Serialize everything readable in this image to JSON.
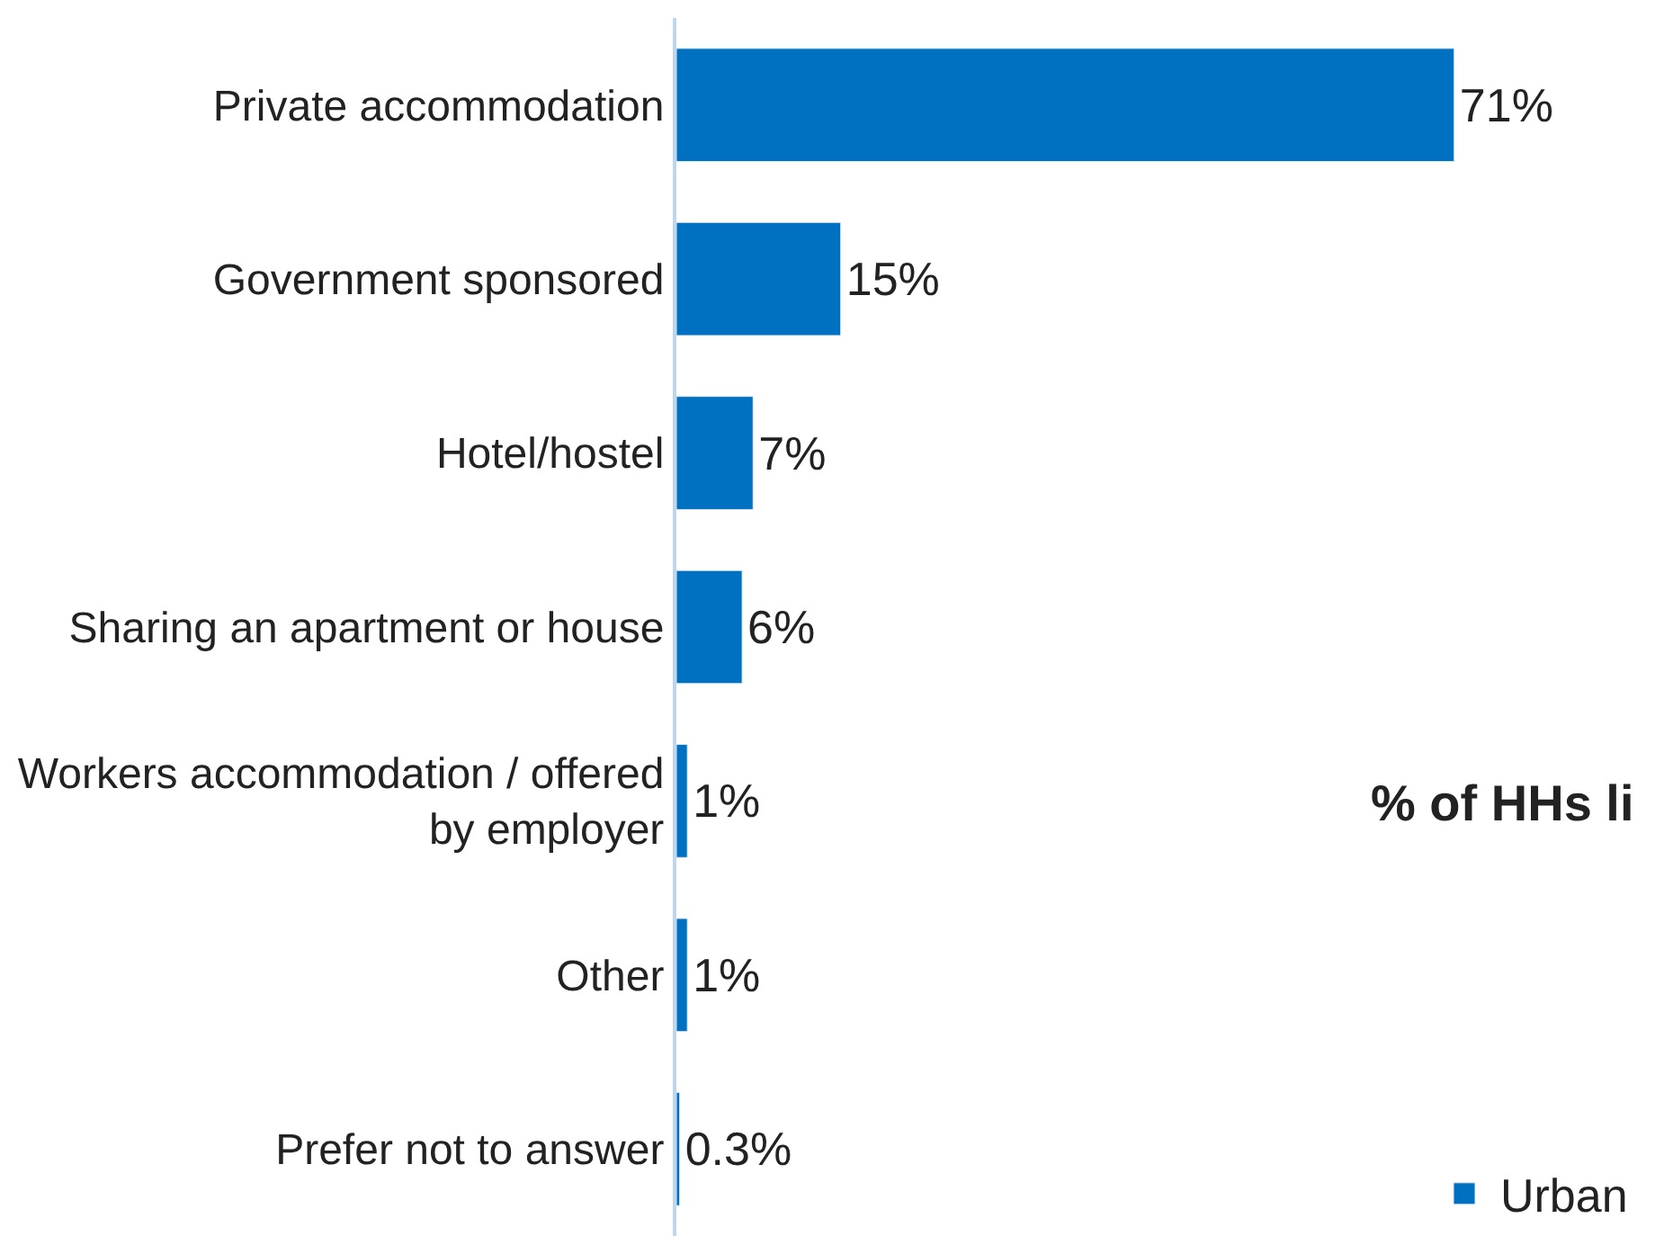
{
  "chart_data": {
    "type": "bar",
    "orientation": "horizontal",
    "categories": [
      "Private accommodation",
      "Government sponsored",
      "Hotel/hostel",
      "Sharing an apartment or house",
      "Workers accommodation / offered by employer",
      "Other",
      "Prefer not to answer"
    ],
    "series": [
      {
        "name": "Urban",
        "color": "#0070c0",
        "values": [
          71,
          15,
          7,
          6,
          1,
          1,
          0.3
        ],
        "value_labels": [
          "71%",
          "15%",
          "7%",
          "6%",
          "1%",
          "1%",
          "0.3%"
        ]
      }
    ],
    "annotations": [
      "% of HHs li"
    ],
    "legend": "bottom right"
  }
}
